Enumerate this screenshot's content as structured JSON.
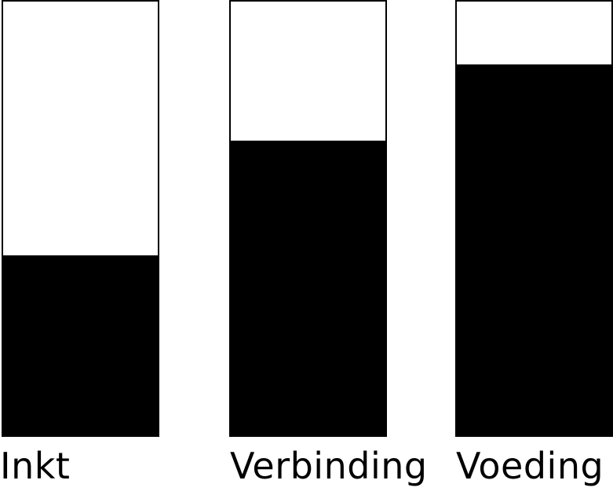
{
  "gauges": [
    {
      "label": "Inkt",
      "level": 0.415
    },
    {
      "label": "Verbinding",
      "level": 0.68
    },
    {
      "label": "Voeding",
      "level": 0.855
    }
  ],
  "colors": {
    "fill": "#000000",
    "empty": "#ffffff",
    "border": "#000000",
    "text": "#000000"
  }
}
